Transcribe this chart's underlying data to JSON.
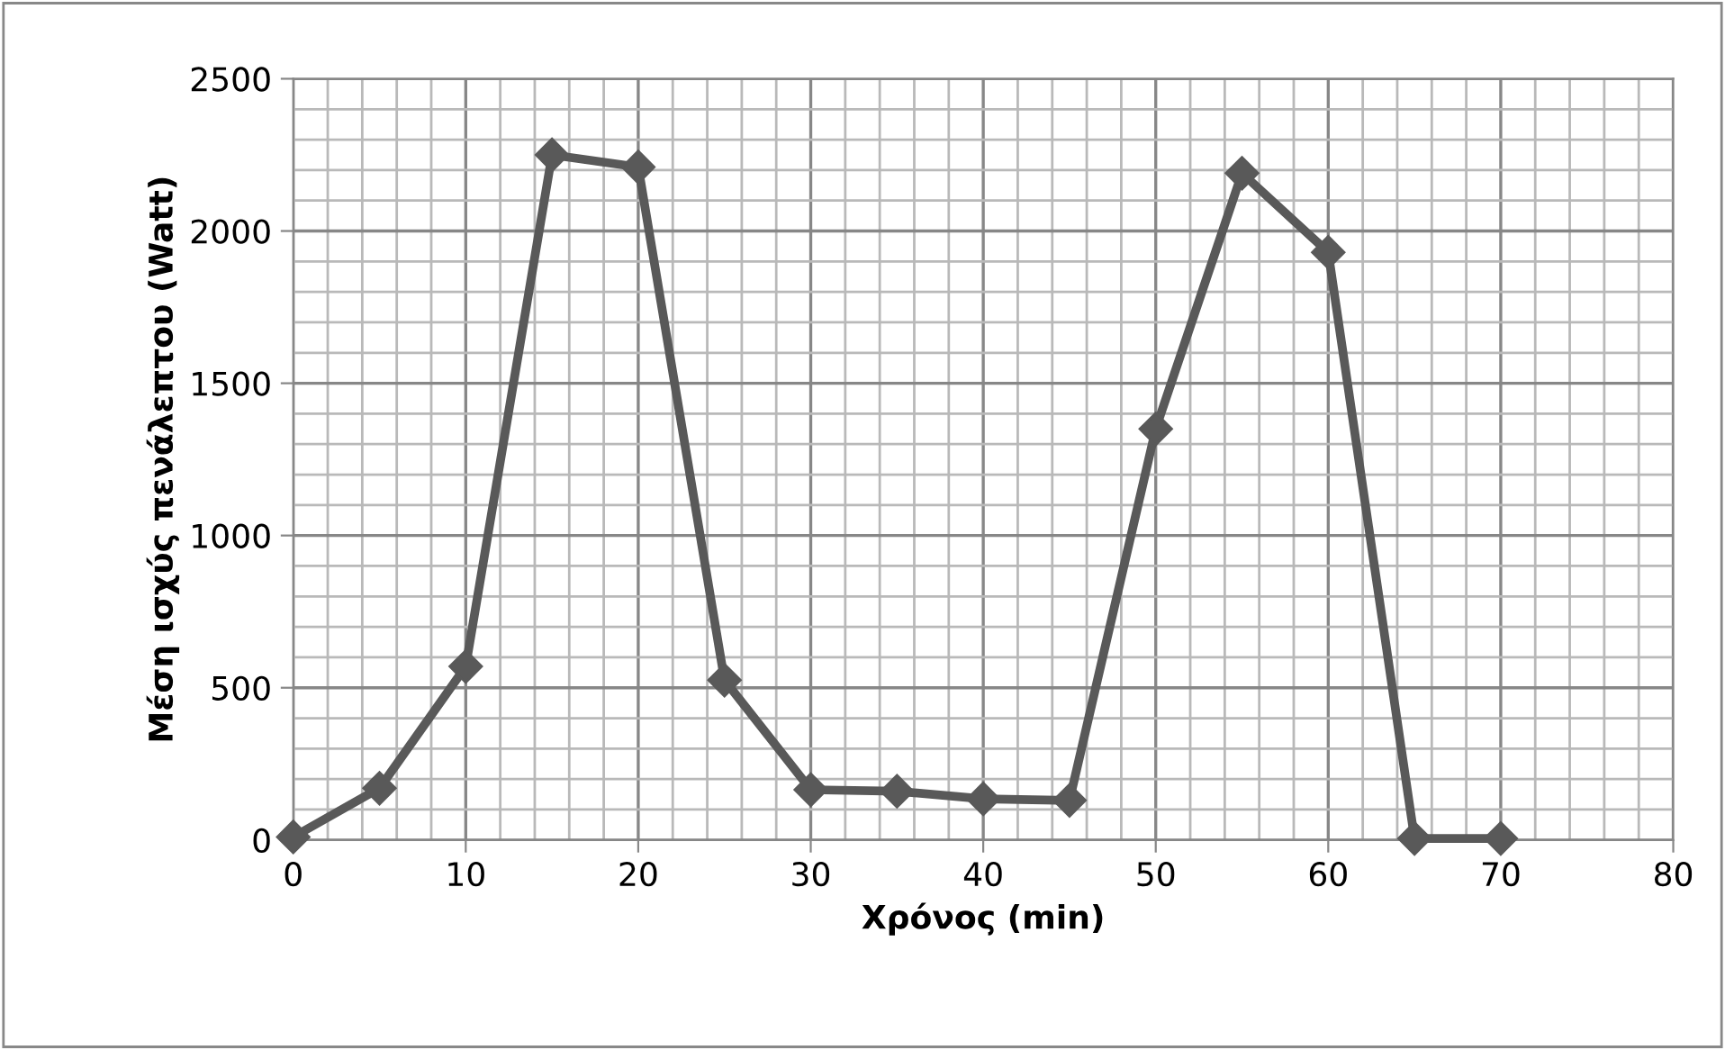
{
  "chart_data": {
    "type": "line",
    "xlabel": "Χρόνος (min)",
    "ylabel": "Μέση ισχύς πενάλεπτου (Watt)",
    "x": [
      0,
      5,
      10,
      15,
      20,
      25,
      30,
      35,
      40,
      45,
      50,
      55,
      60,
      65,
      70
    ],
    "series": [
      {
        "color": "#595959",
        "values": [
          10,
          170,
          570,
          2250,
          2210,
          525,
          165,
          160,
          135,
          130,
          1350,
          2190,
          1930,
          5,
          5
        ]
      }
    ],
    "xlim": [
      0,
      80
    ],
    "ylim": [
      0,
      2500
    ],
    "xticks": [
      0,
      10,
      20,
      30,
      40,
      50,
      60,
      70,
      80
    ],
    "yticks": [
      0,
      500,
      1000,
      1500,
      2000,
      2500
    ],
    "grid": true,
    "marker": "diamond",
    "line_style": "solid",
    "legend": false
  }
}
